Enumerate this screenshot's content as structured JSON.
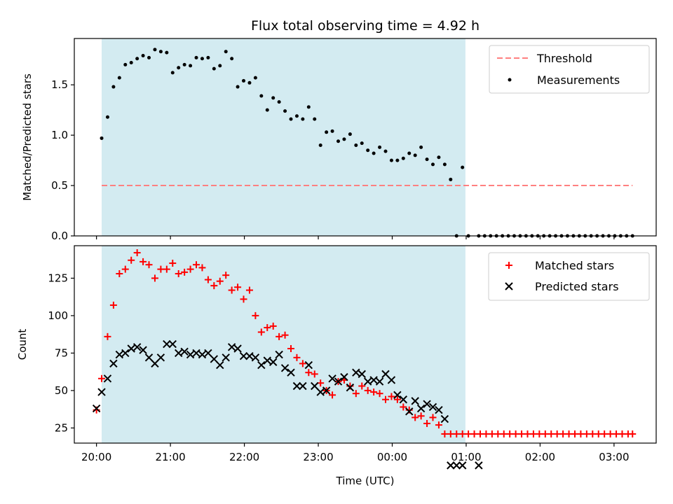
{
  "chart_data": {
    "type": "scatter",
    "title": "Flux total observing time = 4.92 h",
    "xlabel": "Time (UTC)",
    "x_tick_labels": [
      "20:00",
      "21:00",
      "22:00",
      "23:00",
      "00:00",
      "01:00",
      "02:00",
      "03:00"
    ],
    "x_tick_hours": [
      0,
      1,
      2,
      3,
      4,
      5,
      6,
      7
    ],
    "x_range_hours": [
      -0.3,
      7.57
    ],
    "observing_window_hours": [
      0.07,
      4.99
    ],
    "observing_window_color": "#d3ebf1",
    "top_panel": {
      "ylabel": "Matched/Predicted stars",
      "ylim": [
        0,
        1.96
      ],
      "y_ticks": [
        0.0,
        0.5,
        1.0,
        1.5
      ],
      "y_tick_labels": [
        "0.0",
        "0.5",
        "1.0",
        "1.5"
      ],
      "legend": {
        "placement": "upper right",
        "entries": [
          "Threshold",
          "Measurements"
        ]
      },
      "threshold": {
        "name": "Threshold",
        "value": 0.5,
        "x_range_hours": [
          0.07,
          7.25
        ],
        "color": "#ff8080"
      },
      "measurements": {
        "name": "Measurements",
        "color": "#000000",
        "x": [
          0.07,
          0.15,
          0.23,
          0.31,
          0.39,
          0.47,
          0.55,
          0.63,
          0.71,
          0.79,
          0.87,
          0.95,
          1.03,
          1.11,
          1.19,
          1.27,
          1.35,
          1.43,
          1.51,
          1.59,
          1.67,
          1.75,
          1.83,
          1.91,
          1.99,
          2.07,
          2.15,
          2.23,
          2.31,
          2.39,
          2.47,
          2.55,
          2.63,
          2.71,
          2.79,
          2.87,
          2.95,
          3.03,
          3.11,
          3.19,
          3.27,
          3.35,
          3.43,
          3.51,
          3.59,
          3.67,
          3.75,
          3.83,
          3.91,
          3.99,
          4.07,
          4.15,
          4.23,
          4.31,
          4.39,
          4.47,
          4.55,
          4.63,
          4.71,
          4.79,
          4.87,
          4.95,
          5.03,
          5.17,
          5.25,
          5.33,
          5.41,
          5.49,
          5.57,
          5.65,
          5.73,
          5.81,
          5.89,
          5.97,
          6.05,
          6.13,
          6.21,
          6.29,
          6.37,
          6.45,
          6.53,
          6.61,
          6.69,
          6.77,
          6.85,
          6.93,
          7.01,
          7.09,
          7.17,
          7.25
        ],
        "y": [
          0.97,
          1.18,
          1.48,
          1.57,
          1.7,
          1.72,
          1.76,
          1.79,
          1.77,
          1.85,
          1.83,
          1.82,
          1.62,
          1.67,
          1.7,
          1.69,
          1.77,
          1.76,
          1.77,
          1.66,
          1.69,
          1.83,
          1.76,
          1.48,
          1.54,
          1.52,
          1.57,
          1.39,
          1.25,
          1.37,
          1.33,
          1.24,
          1.16,
          1.19,
          1.16,
          1.28,
          1.16,
          0.9,
          1.03,
          1.04,
          0.94,
          0.96,
          1.01,
          0.9,
          0.92,
          0.85,
          0.82,
          0.88,
          0.84,
          0.75,
          0.75,
          0.77,
          0.82,
          0.8,
          0.88,
          0.76,
          0.71,
          0.78,
          0.71,
          0.56,
          0.0,
          0.68,
          0,
          0,
          0,
          0,
          0,
          0,
          0,
          0,
          0,
          0,
          0,
          0,
          0,
          0,
          0,
          0,
          0,
          0,
          0,
          0,
          0,
          0,
          0,
          0,
          0,
          0,
          0,
          0
        ]
      }
    },
    "bottom_panel": {
      "ylabel": "Count",
      "ylim": [
        14.9,
        146.7
      ],
      "y_ticks": [
        25,
        50,
        75,
        100,
        125
      ],
      "y_tick_labels": [
        "25",
        "50",
        "75",
        "100",
        "125"
      ],
      "legend": {
        "placement": "upper right",
        "entries": [
          "Matched stars",
          "Predicted stars"
        ]
      },
      "series": [
        {
          "name": "Matched stars",
          "marker": "plus",
          "color": "#ff0000",
          "x": [
            0.0,
            0.07,
            0.15,
            0.23,
            0.31,
            0.39,
            0.47,
            0.55,
            0.63,
            0.71,
            0.79,
            0.87,
            0.95,
            1.03,
            1.11,
            1.19,
            1.27,
            1.35,
            1.43,
            1.51,
            1.59,
            1.67,
            1.75,
            1.83,
            1.91,
            1.99,
            2.07,
            2.15,
            2.23,
            2.31,
            2.39,
            2.47,
            2.55,
            2.63,
            2.71,
            2.79,
            2.87,
            2.95,
            3.03,
            3.11,
            3.19,
            3.27,
            3.35,
            3.43,
            3.51,
            3.59,
            3.67,
            3.75,
            3.83,
            3.91,
            3.99,
            4.07,
            4.15,
            4.23,
            4.31,
            4.39,
            4.47,
            4.55,
            4.63,
            4.71,
            4.79,
            4.87,
            4.95,
            5.03,
            5.11,
            5.19,
            5.27,
            5.35,
            5.43,
            5.51,
            5.59,
            5.67,
            5.75,
            5.83,
            5.91,
            5.99,
            6.07,
            6.15,
            6.23,
            6.31,
            6.39,
            6.47,
            6.55,
            6.63,
            6.71,
            6.79,
            6.87,
            6.95,
            7.03,
            7.11,
            7.19,
            7.25
          ],
          "y": [
            37,
            58,
            86,
            107,
            128,
            131,
            137,
            142,
            136,
            134,
            125,
            131,
            131,
            135,
            128,
            129,
            131,
            134,
            132,
            124,
            120,
            123,
            127,
            117,
            119,
            111,
            117,
            100,
            89,
            92,
            93,
            86,
            87,
            78,
            72,
            68,
            62,
            61,
            55,
            50,
            47,
            56,
            57,
            53,
            48,
            53,
            50,
            49,
            48,
            44,
            46,
            44,
            39,
            37,
            32,
            33,
            28,
            32,
            27,
            21,
            21,
            21,
            21,
            21,
            21,
            21,
            21,
            21,
            21,
            21,
            21,
            21,
            21,
            21,
            21,
            21,
            21,
            21,
            21,
            21,
            21,
            21,
            21,
            21,
            21,
            21,
            21,
            21,
            21,
            21,
            21,
            21
          ]
        },
        {
          "name": "Predicted stars",
          "marker": "x",
          "color": "#000000",
          "x": [
            0.0,
            0.07,
            0.15,
            0.23,
            0.31,
            0.39,
            0.47,
            0.55,
            0.63,
            0.71,
            0.79,
            0.87,
            0.95,
            1.03,
            1.11,
            1.19,
            1.27,
            1.35,
            1.43,
            1.51,
            1.59,
            1.67,
            1.75,
            1.83,
            1.91,
            1.99,
            2.07,
            2.15,
            2.23,
            2.31,
            2.39,
            2.47,
            2.55,
            2.63,
            2.71,
            2.79,
            2.87,
            2.95,
            3.03,
            3.11,
            3.19,
            3.27,
            3.35,
            3.43,
            3.51,
            3.59,
            3.67,
            3.75,
            3.83,
            3.91,
            3.99,
            4.07,
            4.15,
            4.23,
            4.31,
            4.39,
            4.47,
            4.55,
            4.63,
            4.71,
            4.79,
            4.87,
            4.95,
            5.17
          ],
          "y": [
            38,
            49,
            58,
            68,
            74,
            75,
            78,
            79,
            77,
            72,
            68,
            72,
            81,
            81,
            75,
            76,
            74,
            75,
            74,
            75,
            71,
            67,
            72,
            79,
            78,
            73,
            73,
            72,
            67,
            70,
            69,
            74,
            65,
            62,
            53,
            53,
            67,
            53,
            49,
            50,
            58,
            56,
            59,
            52,
            62,
            61,
            56,
            57,
            56,
            61,
            57,
            47,
            44,
            36,
            43,
            38,
            41,
            39,
            37,
            31,
            0,
            0,
            0,
            0
          ]
        }
      ]
    }
  }
}
